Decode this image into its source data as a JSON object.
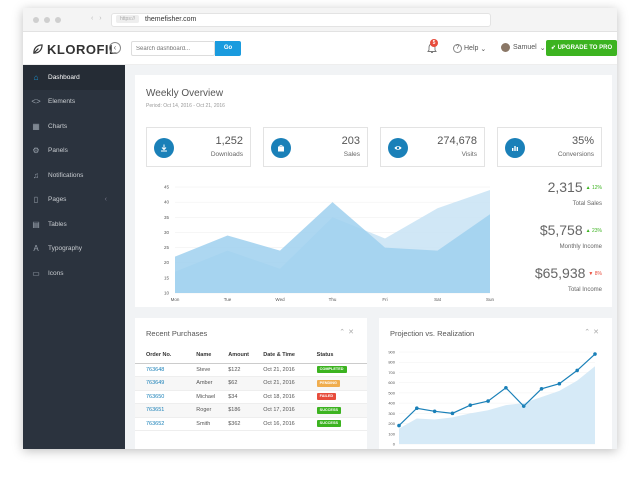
{
  "browser": {
    "url": "themefisher.com",
    "url_tag": "https://"
  },
  "topbar": {
    "logo": "KLOROFIL",
    "search_placeholder": "Search dashboard...",
    "go_label": "Go",
    "notif_count": "5",
    "help_label": "Help",
    "user_label": "Samuel",
    "upgrade_label": "UPGRADE TO PRO"
  },
  "sidebar": {
    "items": [
      {
        "label": "Dashboard",
        "icon": "home-icon"
      },
      {
        "label": "Elements",
        "icon": "code-icon"
      },
      {
        "label": "Charts",
        "icon": "chart-icon"
      },
      {
        "label": "Panels",
        "icon": "cog-icon"
      },
      {
        "label": "Notifications",
        "icon": "bell-icon"
      },
      {
        "label": "Pages",
        "icon": "file-icon"
      },
      {
        "label": "Tables",
        "icon": "table-icon"
      },
      {
        "label": "Typography",
        "icon": "text-icon"
      },
      {
        "label": "Icons",
        "icon": "screen-icon"
      }
    ]
  },
  "weekly": {
    "title": "Weekly Overview",
    "period": "Period: Oct 14, 2016 - Oct 21, 2016",
    "stats": [
      {
        "value": "1,252",
        "label": "Downloads",
        "icon": "download-icon"
      },
      {
        "value": "203",
        "label": "Sales",
        "icon": "bag-icon"
      },
      {
        "value": "274,678",
        "label": "Visits",
        "icon": "eye-icon"
      },
      {
        "value": "35%",
        "label": "Conversions",
        "icon": "bar-chart-icon"
      }
    ],
    "side_stats": [
      {
        "value": "2,315",
        "change": "12%",
        "dir": "up",
        "caption": "Total Sales"
      },
      {
        "value": "$5,758",
        "change": "23%",
        "dir": "up",
        "caption": "Monthly Income"
      },
      {
        "value": "$65,938",
        "change": "8%",
        "dir": "down",
        "caption": "Total Income"
      }
    ]
  },
  "chart_data": [
    {
      "type": "area",
      "categories": [
        "Mon",
        "Tue",
        "Wed",
        "Thu",
        "Fri",
        "Sat",
        "Sun"
      ],
      "ylim": [
        10,
        45
      ],
      "yticks": [
        10,
        15,
        20,
        25,
        30,
        35,
        40,
        45
      ],
      "series": [
        {
          "values": [
            22,
            29,
            24,
            40,
            25,
            24,
            36
          ]
        },
        {
          "values": [
            17,
            24,
            18,
            35,
            28,
            38,
            44
          ]
        }
      ],
      "colors": [
        "#9fd0ef",
        "#c8e3f5"
      ]
    },
    {
      "type": "line",
      "x": [
        1,
        2,
        3,
        4,
        5,
        6,
        7,
        8,
        9,
        10,
        11,
        12
      ],
      "ylim": [
        0,
        900
      ],
      "yticks": [
        0,
        100,
        200,
        300,
        400,
        500,
        600,
        700,
        800,
        900
      ],
      "series": [
        {
          "values": [
            180,
            350,
            320,
            300,
            380,
            420,
            550,
            370,
            540,
            590,
            720,
            880
          ]
        },
        {
          "values": [
            150,
            250,
            240,
            260,
            300,
            330,
            380,
            400,
            460,
            520,
            620,
            760
          ]
        }
      ],
      "colors": [
        "#1a80b8",
        "#d6eaf7"
      ]
    }
  ],
  "recent": {
    "title": "Recent Purchases",
    "columns": [
      "Order No.",
      "Name",
      "Amount",
      "Date & Time",
      "Status"
    ],
    "rows": [
      {
        "order": "763648",
        "name": "Steve",
        "amount": "$122",
        "date": "Oct 21, 2016",
        "status": "COMPLETED",
        "cls": "b-completed"
      },
      {
        "order": "763649",
        "name": "Amber",
        "amount": "$62",
        "date": "Oct 21, 2016",
        "status": "PENDING",
        "cls": "b-pending"
      },
      {
        "order": "763650",
        "name": "Michael",
        "amount": "$34",
        "date": "Oct 18, 2016",
        "status": "FAILED",
        "cls": "b-failed"
      },
      {
        "order": "763651",
        "name": "Roger",
        "amount": "$186",
        "date": "Oct 17, 2016",
        "status": "SUCCESS",
        "cls": "b-success"
      },
      {
        "order": "763652",
        "name": "Smith",
        "amount": "$362",
        "date": "Oct 16, 2016",
        "status": "SUCCESS",
        "cls": "b-success"
      }
    ]
  },
  "projection": {
    "title": "Projection vs. Realization"
  }
}
